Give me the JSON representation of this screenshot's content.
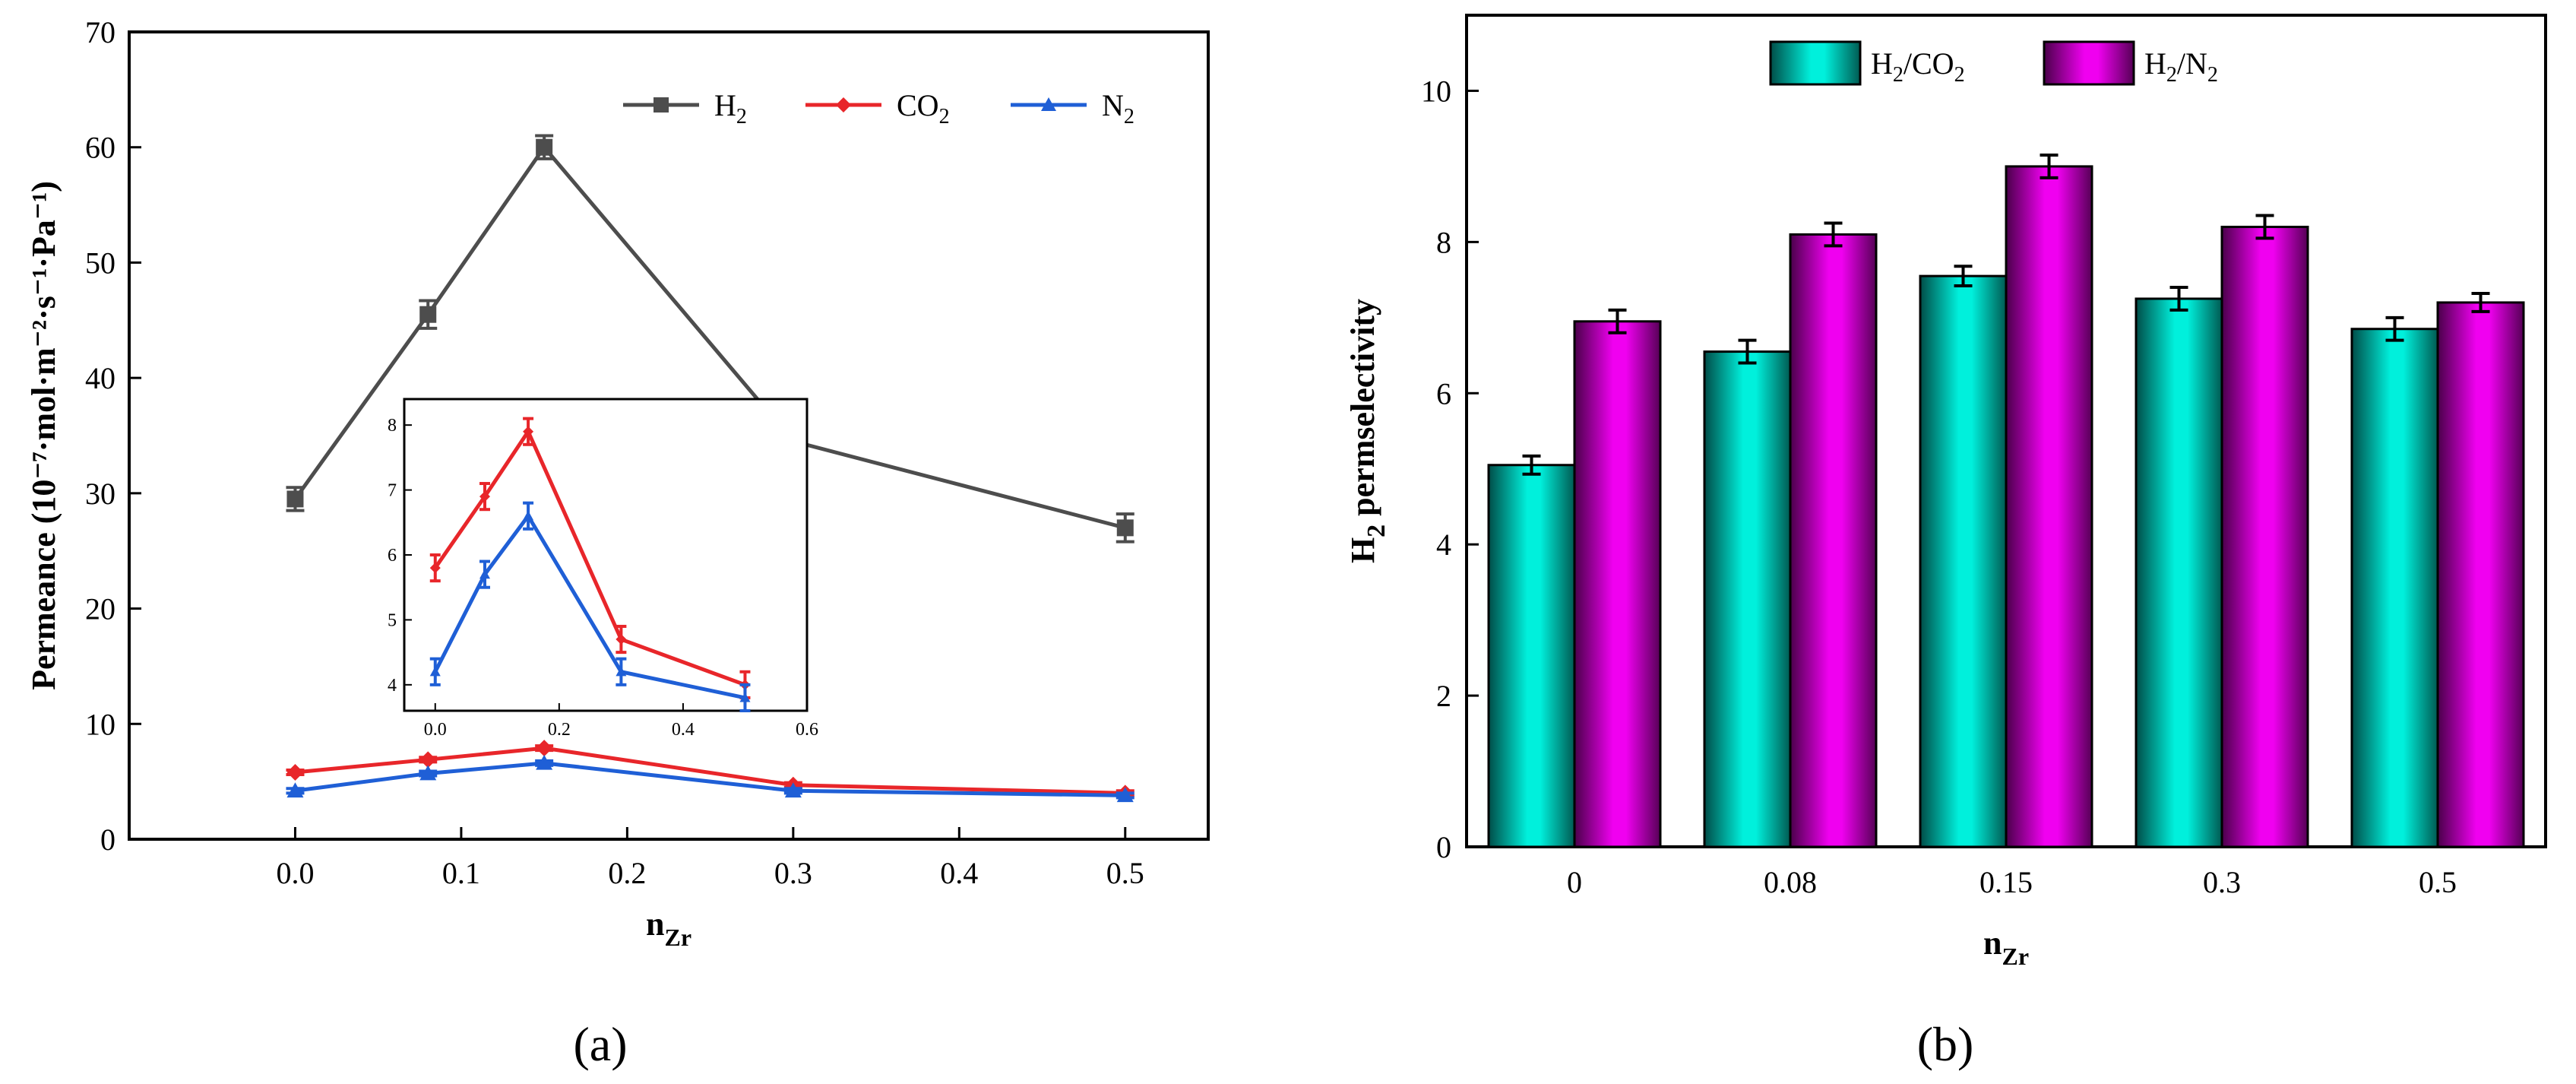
{
  "chart_data": [
    {
      "type": "line",
      "panel": "a",
      "panel_label": "(a)",
      "xlabel": "n",
      "xlabel_sub": "Zr",
      "ylabel": "Permeance (10⁻⁷·mol·m⁻²·s⁻¹·Pa⁻¹)",
      "xlim": [
        -0.1,
        0.55
      ],
      "ylim": [
        0,
        70
      ],
      "xticks": [
        0.0,
        0.1,
        0.2,
        0.3,
        0.4,
        0.5
      ],
      "xtick_labels": [
        "0.0",
        "0.1",
        "0.2",
        "0.3",
        "0.4",
        "0.5"
      ],
      "yticks": [
        0,
        10,
        20,
        30,
        40,
        50,
        60,
        70
      ],
      "ytick_labels": [
        "0",
        "10",
        "20",
        "30",
        "40",
        "50",
        "60",
        "70"
      ],
      "x": [
        0.0,
        0.08,
        0.15,
        0.3,
        0.5
      ],
      "series": [
        {
          "name": "H2",
          "label": "H",
          "sub": "2",
          "color": "#4d4d4d",
          "marker": "square",
          "values": [
            29.5,
            45.5,
            60.0,
            34.5,
            27.0
          ],
          "errors": [
            1.0,
            1.2,
            1.0,
            1.2,
            1.2
          ]
        },
        {
          "name": "CO2",
          "label": "CO",
          "sub": "2",
          "color": "#e8262a",
          "marker": "diamond",
          "values": [
            5.8,
            6.9,
            7.9,
            4.7,
            4.0
          ],
          "errors": [
            0.2,
            0.2,
            0.2,
            0.2,
            0.2
          ]
        },
        {
          "name": "N2",
          "label": "N",
          "sub": "2",
          "color": "#1f5fd6",
          "marker": "triangle",
          "values": [
            4.2,
            5.7,
            6.6,
            4.2,
            3.8
          ],
          "errors": [
            0.2,
            0.2,
            0.2,
            0.2,
            0.2
          ]
        }
      ],
      "legend_position": "top-right",
      "inset": {
        "xlim": [
          -0.05,
          0.6
        ],
        "ylim": [
          3.6,
          8.4
        ],
        "xticks": [
          0.0,
          0.2,
          0.4,
          0.6
        ],
        "xtick_labels": [
          "0.0",
          "0.2",
          "0.4",
          "0.6"
        ],
        "yticks": [
          4,
          5,
          6,
          7,
          8
        ],
        "ytick_labels": [
          "4",
          "5",
          "6",
          "7",
          "8"
        ],
        "series": [
          "CO2",
          "N2"
        ]
      }
    },
    {
      "type": "bar",
      "panel": "b",
      "panel_label": "(b)",
      "xlabel": "n",
      "xlabel_sub": "Zr",
      "ylabel": "H",
      "ylabel_sub": "2",
      "ylabel_rest": " permselectivity",
      "categories": [
        "0",
        "0.08",
        "0.15",
        "0.3",
        "0.5"
      ],
      "ylim": [
        0,
        11
      ],
      "yticks": [
        0,
        2,
        4,
        6,
        8,
        10
      ],
      "ytick_labels": [
        "0",
        "2",
        "4",
        "6",
        "8",
        "10"
      ],
      "series": [
        {
          "name": "H2/CO2",
          "label_parts": [
            "H",
            "2",
            "/CO",
            "2"
          ],
          "color": "#00e5d2",
          "values": [
            5.05,
            6.55,
            7.55,
            7.25,
            6.85
          ],
          "errors": [
            0.12,
            0.15,
            0.13,
            0.15,
            0.15
          ]
        },
        {
          "name": "H2/N2",
          "label_parts": [
            "H",
            "2",
            "/N",
            "2"
          ],
          "color": "#e600e6",
          "values": [
            6.95,
            8.1,
            9.0,
            8.2,
            7.2
          ],
          "errors": [
            0.15,
            0.15,
            0.15,
            0.15,
            0.12
          ]
        }
      ],
      "legend_position": "top-left"
    }
  ]
}
